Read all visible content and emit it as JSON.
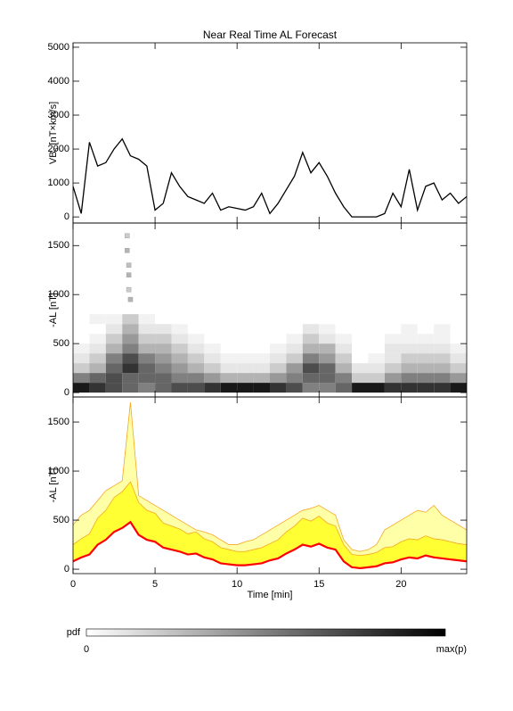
{
  "title": "Near Real Time AL Forecast",
  "chart_data": [
    {
      "type": "line",
      "ylabel": {
        "main": "VB",
        "sub": "s",
        "unit": "[nT×km/s]"
      },
      "x": [
        0,
        0.5,
        1,
        1.5,
        2,
        2.5,
        3,
        3.5,
        4,
        4.5,
        5,
        5.5,
        6,
        6.5,
        7,
        7.5,
        8,
        8.5,
        9,
        9.5,
        10,
        10.5,
        11,
        11.5,
        12,
        12.5,
        13,
        13.5,
        14,
        14.5,
        15,
        15.5,
        16,
        16.5,
        17,
        17.5,
        18,
        18.5,
        19,
        19.5,
        20,
        20.5,
        21,
        21.5,
        22,
        22.5,
        23,
        23.5,
        24
      ],
      "values": [
        900,
        100,
        2200,
        1500,
        1600,
        2000,
        2300,
        1800,
        1700,
        1500,
        200,
        400,
        1300,
        900,
        600,
        500,
        400,
        700,
        200,
        300,
        250,
        200,
        300,
        700,
        100,
        400,
        800,
        1200,
        1900,
        1300,
        1600,
        1200,
        700,
        300,
        0,
        0,
        0,
        0,
        100,
        700,
        300,
        1400,
        200,
        900,
        1000,
        500,
        700,
        400,
        600
      ],
      "color": "#000000",
      "xlim": [
        0,
        24
      ],
      "xticks": [
        0,
        5,
        10,
        15,
        20
      ],
      "xtick_labels": false,
      "ylim": [
        -180,
        5130
      ],
      "yticks": [
        0,
        1000,
        2000,
        3000,
        4000,
        5000
      ]
    },
    {
      "type": "heatmap",
      "ylabel": "-AL [nT]",
      "x_edges": [
        0,
        1,
        2,
        3,
        4,
        5,
        6,
        7,
        8,
        9,
        10,
        11,
        12,
        13,
        14,
        15,
        16,
        17,
        18,
        19,
        20,
        21,
        22,
        23,
        24
      ],
      "y_edges": [
        0,
        100,
        200,
        300,
        400,
        500,
        600,
        700,
        800
      ],
      "z": [
        [
          0.9,
          0.8,
          0.7,
          0.6,
          0.5,
          0.6,
          0.7,
          0.7,
          0.8,
          0.9,
          0.9,
          0.9,
          0.8,
          0.7,
          0.5,
          0.5,
          0.6,
          0.9,
          0.9,
          0.8,
          0.8,
          0.8,
          0.8,
          0.9
        ],
        [
          0.5,
          0.6,
          0.7,
          0.6,
          0.6,
          0.6,
          0.5,
          0.5,
          0.4,
          0.3,
          0.3,
          0.3,
          0.4,
          0.5,
          0.6,
          0.6,
          0.5,
          0.2,
          0.2,
          0.4,
          0.5,
          0.5,
          0.5,
          0.4
        ],
        [
          0.2,
          0.3,
          0.6,
          0.8,
          0.6,
          0.5,
          0.4,
          0.3,
          0.2,
          0.1,
          0.1,
          0.1,
          0.2,
          0.4,
          0.7,
          0.6,
          0.3,
          0.1,
          0.1,
          0.2,
          0.3,
          0.3,
          0.3,
          0.2
        ],
        [
          0.1,
          0.2,
          0.5,
          0.7,
          0.5,
          0.4,
          0.3,
          0.2,
          0.1,
          0.05,
          0.05,
          0.05,
          0.1,
          0.2,
          0.5,
          0.4,
          0.2,
          0,
          0.05,
          0.1,
          0.2,
          0.2,
          0.2,
          0.1
        ],
        [
          0.05,
          0.1,
          0.3,
          0.5,
          0.3,
          0.3,
          0.2,
          0.1,
          0.05,
          0,
          0,
          0,
          0.05,
          0.1,
          0.3,
          0.3,
          0.1,
          0,
          0,
          0.1,
          0.1,
          0.1,
          0.1,
          0.05
        ],
        [
          0,
          0.05,
          0.2,
          0.4,
          0.2,
          0.2,
          0.1,
          0.05,
          0,
          0,
          0,
          0,
          0,
          0.05,
          0.2,
          0.1,
          0.05,
          0,
          0,
          0.05,
          0.05,
          0.05,
          0.05,
          0
        ],
        [
          0,
          0,
          0.1,
          0.3,
          0.1,
          0.1,
          0.05,
          0,
          0,
          0,
          0,
          0,
          0,
          0,
          0.1,
          0.05,
          0,
          0,
          0,
          0,
          0.05,
          0,
          0.05,
          0
        ],
        [
          0,
          0.05,
          0.05,
          0.2,
          0.05,
          0,
          0,
          0,
          0,
          0,
          0,
          0,
          0,
          0,
          0,
          0,
          0,
          0,
          0,
          0,
          0,
          0,
          0,
          0
        ]
      ],
      "points": {
        "x": [
          3.3,
          3.3,
          3.4,
          3.4,
          3.4,
          3.5
        ],
        "y": [
          1600,
          1450,
          1300,
          1200,
          1050,
          950
        ],
        "z": [
          0.2,
          0.3,
          0.25,
          0.3,
          0.2,
          0.3
        ]
      },
      "xlim": [
        0,
        24
      ],
      "xticks": [
        0,
        5,
        10,
        15,
        20
      ],
      "xtick_labels": false,
      "ylim": [
        -45,
        1730
      ],
      "yticks": [
        0,
        500,
        1000,
        1500
      ],
      "colorbar": {
        "label": "pdf",
        "min_label": "0",
        "max_label": "max(p)"
      }
    },
    {
      "type": "band",
      "ylabel": "-AL [nT]",
      "xlabel": "Time [min]",
      "x": [
        0,
        0.5,
        1,
        1.5,
        2,
        2.5,
        3,
        3.5,
        4,
        4.5,
        5,
        5.5,
        6,
        6.5,
        7,
        7.5,
        8,
        8.5,
        9,
        9.5,
        10,
        10.5,
        11,
        11.5,
        12,
        12.5,
        13,
        13.5,
        14,
        14.5,
        15,
        15.5,
        16,
        16.5,
        17,
        17.5,
        18,
        18.5,
        19,
        19.5,
        20,
        20.5,
        21,
        21.5,
        22,
        22.5,
        23,
        23.5,
        24
      ],
      "series": [
        {
          "color": "#ffffa8",
          "edge": "#f5a623",
          "values": [
            450,
            550,
            600,
            700,
            800,
            850,
            900,
            1700,
            750,
            700,
            650,
            600,
            550,
            500,
            450,
            400,
            380,
            350,
            300,
            250,
            250,
            280,
            300,
            350,
            400,
            450,
            500,
            550,
            600,
            620,
            650,
            600,
            550,
            300,
            200,
            180,
            200,
            250,
            400,
            450,
            500,
            550,
            600,
            580,
            650,
            550,
            500,
            450,
            400
          ]
        },
        {
          "color": "#ffff33",
          "edge": "#f5a623",
          "values": [
            250,
            310,
            360,
            520,
            600,
            730,
            790,
            890,
            680,
            600,
            570,
            470,
            440,
            410,
            360,
            380,
            310,
            280,
            220,
            200,
            180,
            180,
            200,
            220,
            260,
            300,
            380,
            440,
            520,
            490,
            540,
            470,
            440,
            250,
            150,
            140,
            150,
            170,
            220,
            230,
            280,
            310,
            300,
            340,
            310,
            300,
            280,
            260,
            250
          ]
        },
        {
          "color": "#ff0000",
          "values": [
            80,
            120,
            150,
            250,
            300,
            380,
            420,
            480,
            350,
            300,
            280,
            220,
            200,
            180,
            150,
            160,
            120,
            100,
            60,
            50,
            40,
            40,
            50,
            60,
            90,
            110,
            160,
            200,
            250,
            230,
            260,
            220,
            200,
            80,
            20,
            10,
            20,
            30,
            60,
            70,
            100,
            120,
            110,
            140,
            120,
            110,
            100,
            90,
            80
          ]
        }
      ],
      "fill_base": 2,
      "xlim": [
        0,
        24
      ],
      "xticks": [
        0,
        5,
        10,
        15,
        20
      ],
      "xtick_labels": true,
      "ylim": [
        -45,
        1755
      ],
      "yticks": [
        0,
        500,
        1000,
        1500
      ]
    }
  ]
}
